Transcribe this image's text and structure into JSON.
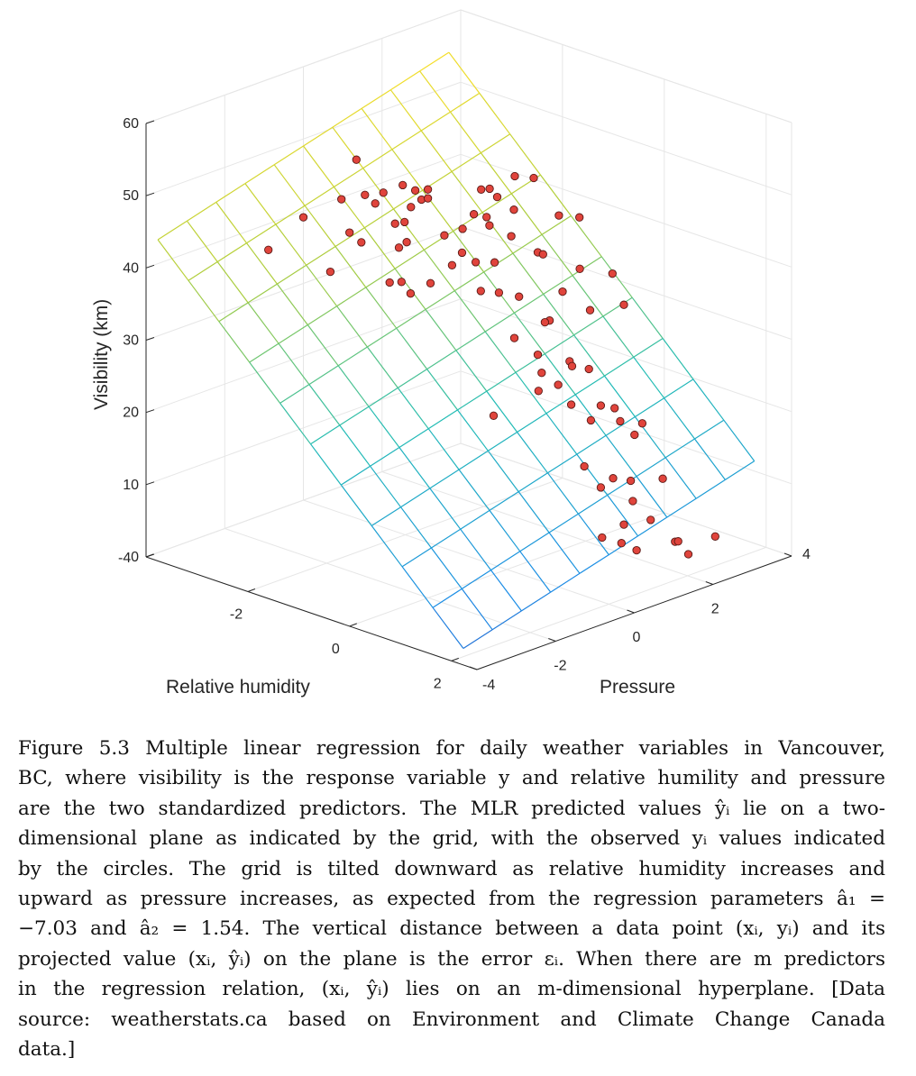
{
  "chart_data": {
    "type": "scatter",
    "subtype": "3d-scatter-with-regression-plane",
    "xlabel": "Relative humidity",
    "ylabel": "Pressure",
    "zlabel": "Visibility (km)",
    "x_ticks": [
      "-4",
      "-2",
      "0",
      "2"
    ],
    "y_ticks": [
      "-4",
      "-2",
      "0",
      "2",
      "4"
    ],
    "z_ticks": [
      "0",
      "10",
      "20",
      "30",
      "40",
      "50",
      "60"
    ],
    "xlim": [
      -4,
      2.5
    ],
    "ylim": [
      -4,
      4
    ],
    "zlim": [
      0,
      60
    ],
    "grid": true,
    "plane": {
      "equation": "y = a0 + a1*x1 + a2*x2",
      "a1": -7.03,
      "a2": 1.54,
      "colormap": "parula",
      "mesh_lines": 10
    },
    "marker_color": "#e0443c",
    "series": [
      {
        "type": "scatter",
        "points_xyz": [
          [
            -2.58,
            -0.49,
            51.5
          ],
          [
            -2.54,
            -2.78,
            43.6
          ],
          [
            -2.23,
            -2.29,
            47.9
          ],
          [
            -2.21,
            -1.35,
            48.6
          ],
          [
            -2.11,
            -1.76,
            39.6
          ],
          [
            -1.95,
            -0.62,
            48.7
          ],
          [
            -1.91,
            -1.14,
            49.5
          ],
          [
            -1.88,
            -1.57,
            45.2
          ],
          [
            -1.79,
            -0.43,
            41.1
          ],
          [
            -1.77,
            -1.06,
            48.5
          ],
          [
            -1.71,
            -0.12,
            48.6
          ],
          [
            -1.67,
            1.82,
            13.7
          ],
          [
            -1.67,
            0.15,
            48.3
          ],
          [
            -1.61,
            -1.62,
            44.6
          ],
          [
            -1.6,
            -0.58,
            50.5
          ],
          [
            -1.57,
            -0.41,
            47.2
          ],
          [
            -1.55,
            -0.84,
            45.8
          ],
          [
            -1.51,
            -0.22,
            48.0
          ],
          [
            -1.48,
            -0.69,
            45.9
          ],
          [
            -1.43,
            0.26,
            42.3
          ],
          [
            -1.4,
            -0.64,
            36.1
          ],
          [
            -1.36,
            -0.79,
            43.6
          ],
          [
            -1.33,
            1.28,
            47.0
          ],
          [
            -1.29,
            0.54,
            43.0
          ],
          [
            -1.26,
            -0.38,
            49.1
          ],
          [
            -1.23,
            -1.09,
            39.0
          ],
          [
            -1.2,
            0.71,
            44.9
          ],
          [
            -1.13,
            -1.52,
            40.0
          ],
          [
            -1.11,
            0.78,
            48.4
          ],
          [
            -1.07,
            0.94,
            43.2
          ],
          [
            -1.03,
            0.19,
            41.0
          ],
          [
            -1.0,
            -0.65,
            38.5
          ],
          [
            -0.98,
            1.02,
            47.2
          ],
          [
            -0.95,
            0.71,
            45.1
          ],
          [
            -0.92,
            1.39,
            49.5
          ],
          [
            -0.87,
            0.33,
            39.8
          ],
          [
            -0.82,
            1.74,
            48.8
          ],
          [
            -0.8,
            0.37,
            35.9
          ],
          [
            -0.76,
            1.16,
            45.7
          ],
          [
            -0.73,
            0.74,
            35.1
          ],
          [
            -0.7,
            -0.49,
            41.4
          ],
          [
            -0.65,
            2.16,
            43.2
          ],
          [
            -0.62,
            0.99,
            28.6
          ],
          [
            -0.6,
            1.56,
            39.4
          ],
          [
            -0.56,
            1.03,
            34.4
          ],
          [
            -0.53,
            0.37,
            40.5
          ],
          [
            -0.51,
            0.77,
            43.4
          ],
          [
            -0.47,
            2.45,
            42.8
          ],
          [
            -0.43,
            1.64,
            30.2
          ],
          [
            -0.39,
            1.42,
            39.9
          ],
          [
            -0.36,
            1.88,
            33.9
          ],
          [
            -0.33,
            1.39,
            30.7
          ],
          [
            -0.3,
            2.24,
            36.5
          ],
          [
            -0.26,
            1.12,
            26.9
          ],
          [
            -0.23,
            2.41,
            30.6
          ],
          [
            -0.2,
            1.14,
            24.5
          ],
          [
            -0.16,
            1.8,
            24.9
          ],
          [
            -0.13,
            0.97,
            22.5
          ],
          [
            -0.1,
            2.81,
            35.2
          ],
          [
            -0.06,
            3.05,
            30.5
          ],
          [
            -0.02,
            1.68,
            24.8
          ],
          [
            0.01,
            2.07,
            23.7
          ],
          [
            0.04,
            1.25,
            23.2
          ],
          [
            0.08,
            1.53,
            20.0
          ],
          [
            0.12,
            2.23,
            18.6
          ],
          [
            0.15,
            1.94,
            17.2
          ],
          [
            0.19,
            2.49,
            17.9
          ],
          [
            0.22,
            1.68,
            11.5
          ],
          [
            0.25,
            2.92,
            13.5
          ],
          [
            0.29,
            2.01,
            8.1
          ],
          [
            0.33,
            2.45,
            16.5
          ],
          [
            0.37,
            2.96,
            15.3
          ],
          [
            0.4,
            2.18,
            9.3
          ],
          [
            0.43,
            1.86,
            1.8
          ],
          [
            0.48,
            2.29,
            0.3
          ],
          [
            0.51,
            2.54,
            5.7
          ],
          [
            0.55,
            2.26,
            3.1
          ],
          [
            0.59,
            2.89,
            2.6
          ],
          [
            0.63,
            2.48,
            -0.7
          ],
          [
            0.67,
            2.28,
            9.4
          ],
          [
            0.71,
            3.04,
            8.3
          ],
          [
            0.76,
            3.29,
            -0.8
          ],
          [
            0.82,
            3.29,
            -0.6
          ],
          [
            0.92,
            3.42,
            -2.4
          ],
          [
            1.1,
            3.87,
            -0.4
          ]
        ]
      }
    ]
  },
  "caption": {
    "lines": [
      "Figure 5.3 Multiple linear regression for daily weather variables in Vancouver,",
      "BC, where visibility is the response variable y and relative humility and pressure",
      "are the two standardized predictors. The MLR predicted values ŷᵢ lie on a two-",
      "dimensional plane as indicated by the grid, with the observed yᵢ values indicated",
      "by the circles. The grid is tilted downward as relative humidity increases and",
      "upward as pressure increases, as expected from the regression parameters â₁ =",
      "−7.03 and â₂ = 1.54. The vertical distance between a data point (xᵢ, yᵢ) and its",
      "projected value (xᵢ, ŷᵢ) on the plane is the error εᵢ. When there are m predictors",
      "in the regression relation, (xᵢ, ŷᵢ) lies on an m-dimensional hyperplane. [Data",
      "source: weatherstats.ca based on Environment and Climate Change Canada",
      "data.]"
    ]
  }
}
